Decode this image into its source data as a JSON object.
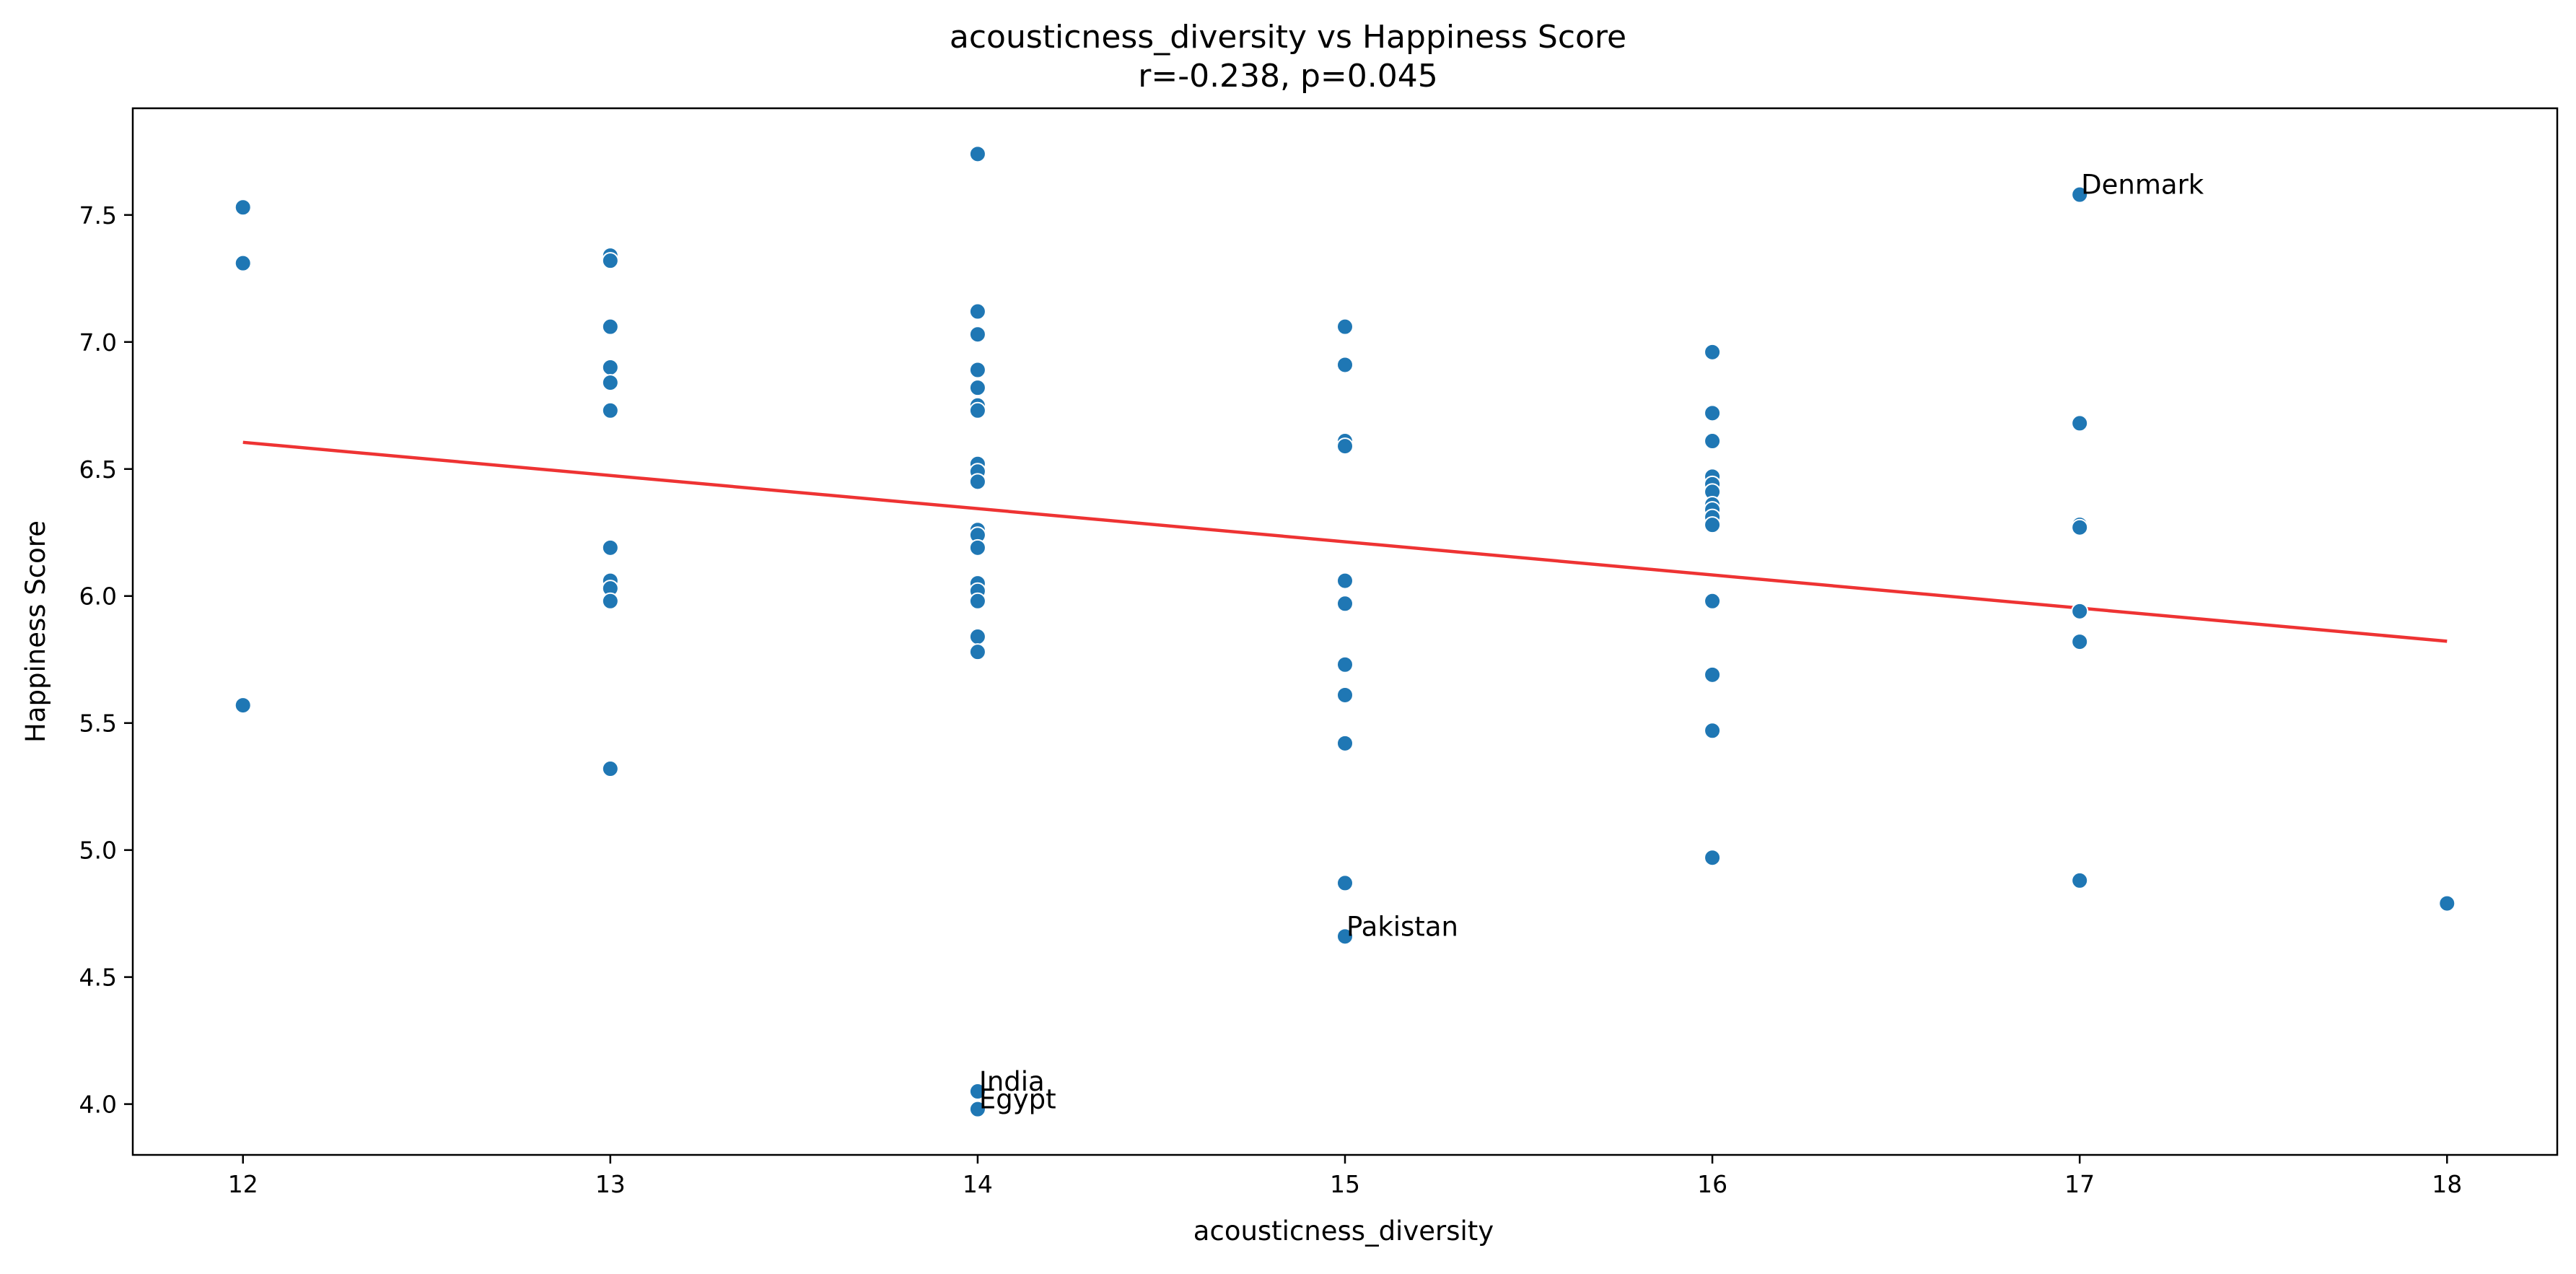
{
  "chart_data": {
    "type": "scatter",
    "title": "acousticness_diversity vs Happiness Score",
    "subtitle": "r=-0.238, p=0.045",
    "xlabel": "acousticness_diversity",
    "ylabel": "Happiness Score",
    "xlim": [
      11.7,
      18.3
    ],
    "ylim": [
      3.8,
      7.92
    ],
    "x_ticks": [
      12,
      13,
      14,
      15,
      16,
      17,
      18
    ],
    "x_tick_labels": [
      "12",
      "13",
      "14",
      "15",
      "16",
      "17",
      "18"
    ],
    "y_ticks": [
      4.0,
      4.5,
      5.0,
      5.5,
      6.0,
      6.5,
      7.0,
      7.5
    ],
    "y_tick_labels": [
      "4.0",
      "4.5",
      "5.0",
      "5.5",
      "6.0",
      "6.5",
      "7.0",
      "7.5"
    ],
    "grid": false,
    "point_color": "#1f77b4",
    "trendline_color": "#ee3333",
    "trendline": {
      "x": [
        12,
        18
      ],
      "y": [
        6.605,
        5.822
      ]
    },
    "points": [
      {
        "x": 12,
        "y": 7.53
      },
      {
        "x": 12,
        "y": 7.31
      },
      {
        "x": 12,
        "y": 5.57
      },
      {
        "x": 13,
        "y": 7.34
      },
      {
        "x": 13,
        "y": 7.32
      },
      {
        "x": 13,
        "y": 7.06
      },
      {
        "x": 13,
        "y": 6.9
      },
      {
        "x": 13,
        "y": 6.84
      },
      {
        "x": 13,
        "y": 6.73
      },
      {
        "x": 13,
        "y": 6.19
      },
      {
        "x": 13,
        "y": 6.06
      },
      {
        "x": 13,
        "y": 6.03
      },
      {
        "x": 13,
        "y": 5.98
      },
      {
        "x": 13,
        "y": 5.32
      },
      {
        "x": 14,
        "y": 7.74
      },
      {
        "x": 14,
        "y": 7.12
      },
      {
        "x": 14,
        "y": 7.03
      },
      {
        "x": 14,
        "y": 6.89
      },
      {
        "x": 14,
        "y": 6.82
      },
      {
        "x": 14,
        "y": 6.75
      },
      {
        "x": 14,
        "y": 6.73
      },
      {
        "x": 14,
        "y": 6.52
      },
      {
        "x": 14,
        "y": 6.49
      },
      {
        "x": 14,
        "y": 6.45
      },
      {
        "x": 14,
        "y": 6.26
      },
      {
        "x": 14,
        "y": 6.24
      },
      {
        "x": 14,
        "y": 6.19
      },
      {
        "x": 14,
        "y": 6.05
      },
      {
        "x": 14,
        "y": 6.02
      },
      {
        "x": 14,
        "y": 5.98
      },
      {
        "x": 14,
        "y": 5.84
      },
      {
        "x": 14,
        "y": 5.78
      },
      {
        "x": 14,
        "y": 4.05,
        "label": "India"
      },
      {
        "x": 14,
        "y": 3.98,
        "label": "Egypt"
      },
      {
        "x": 15,
        "y": 7.06
      },
      {
        "x": 15,
        "y": 6.91
      },
      {
        "x": 15,
        "y": 6.61
      },
      {
        "x": 15,
        "y": 6.59
      },
      {
        "x": 15,
        "y": 6.06
      },
      {
        "x": 15,
        "y": 5.97
      },
      {
        "x": 15,
        "y": 5.73
      },
      {
        "x": 15,
        "y": 5.61
      },
      {
        "x": 15,
        "y": 5.42
      },
      {
        "x": 15,
        "y": 4.87
      },
      {
        "x": 15,
        "y": 4.66,
        "label": "Pakistan"
      },
      {
        "x": 16,
        "y": 6.96
      },
      {
        "x": 16,
        "y": 6.72
      },
      {
        "x": 16,
        "y": 6.61
      },
      {
        "x": 16,
        "y": 6.47
      },
      {
        "x": 16,
        "y": 6.44
      },
      {
        "x": 16,
        "y": 6.41
      },
      {
        "x": 16,
        "y": 6.36
      },
      {
        "x": 16,
        "y": 6.34
      },
      {
        "x": 16,
        "y": 6.31
      },
      {
        "x": 16,
        "y": 6.28
      },
      {
        "x": 16,
        "y": 5.98
      },
      {
        "x": 16,
        "y": 5.69
      },
      {
        "x": 16,
        "y": 5.47
      },
      {
        "x": 16,
        "y": 4.97
      },
      {
        "x": 17,
        "y": 7.58,
        "label": "Denmark"
      },
      {
        "x": 17,
        "y": 6.68
      },
      {
        "x": 17,
        "y": 6.28
      },
      {
        "x": 17,
        "y": 6.27
      },
      {
        "x": 17,
        "y": 5.94
      },
      {
        "x": 17,
        "y": 5.82
      },
      {
        "x": 17,
        "y": 4.88
      },
      {
        "x": 18,
        "y": 4.79
      }
    ]
  }
}
